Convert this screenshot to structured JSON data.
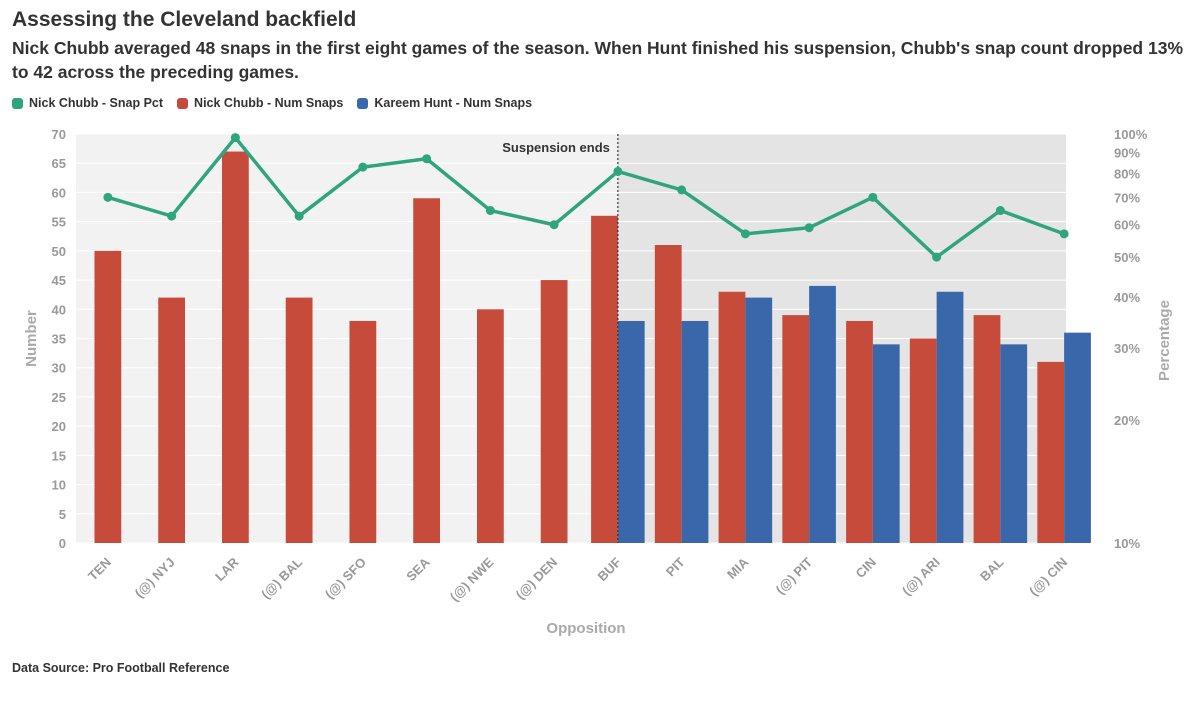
{
  "title": "Assessing the Cleveland backfield",
  "subtitle": "Nick Chubb averaged 48 snaps in the first eight games of the season. When Hunt finished his suspension, Chubb's snap count dropped 13% to 42 across the preceding games.",
  "source": "Data Source: Pro Football Reference",
  "legend": [
    {
      "label": "Nick Chubb - Snap Pct",
      "color": "#2fa57d"
    },
    {
      "label": "Nick Chubb - Num Snaps",
      "color": "#c64b3b"
    },
    {
      "label": "Kareem Hunt - Num Snaps",
      "color": "#3a67aa"
    }
  ],
  "chart_data": {
    "type": "bar",
    "xlabel": "Opposition",
    "ylabel": "Number",
    "y2label": "Percentage",
    "ylim": [
      0,
      70
    ],
    "y_ticks": [
      "0",
      "5",
      "10",
      "15",
      "20",
      "25",
      "30",
      "35",
      "40",
      "45",
      "50",
      "55",
      "60",
      "65",
      "70"
    ],
    "y2_scale": "log",
    "y2lim": [
      10,
      100
    ],
    "y2_ticks": [
      "10%",
      "20%",
      "30%",
      "40%",
      "50%",
      "60%",
      "70%",
      "80%",
      "90%",
      "100%"
    ],
    "grid": true,
    "categories": [
      "TEN",
      "(@) NYJ",
      "LAR",
      "(@) BAL",
      "(@) SFO",
      "SEA",
      "(@) NWE",
      "(@) DEN",
      "BUF",
      "PIT",
      "MIA",
      "(@) PIT",
      "CIN",
      "(@) ARI",
      "BAL",
      "(@) CIN"
    ],
    "series": [
      {
        "name": "Nick Chubb - Num Snaps",
        "type": "bar",
        "color": "#c64b3b",
        "values": [
          50,
          42,
          67,
          42,
          38,
          59,
          40,
          45,
          56,
          51,
          43,
          39,
          38,
          35,
          39,
          31
        ]
      },
      {
        "name": "Kareem Hunt - Num Snaps",
        "type": "bar",
        "color": "#3a67aa",
        "values": [
          null,
          null,
          null,
          null,
          null,
          null,
          null,
          null,
          38,
          38,
          42,
          44,
          34,
          43,
          34,
          36
        ]
      },
      {
        "name": "Nick Chubb - Snap Pct",
        "type": "line",
        "axis": "y2",
        "color": "#2fa57d",
        "values": [
          70,
          63,
          98,
          63,
          83,
          87,
          65,
          60,
          81,
          73,
          57,
          59,
          70,
          50,
          65,
          57
        ]
      }
    ],
    "annotation": {
      "text": "Suspension ends",
      "at_category": "BUF"
    }
  }
}
